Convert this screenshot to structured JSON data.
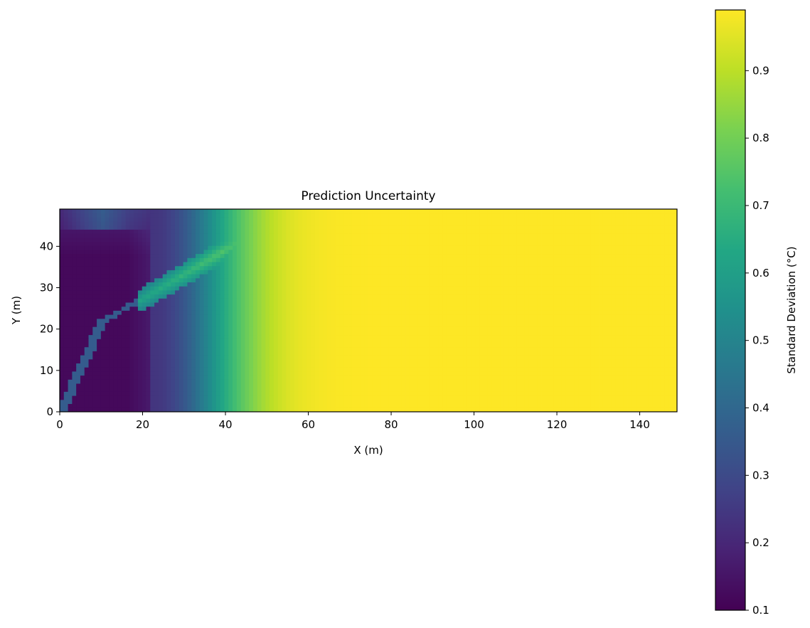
{
  "chart_data": {
    "type": "heatmap",
    "title": "Prediction Uncertainty",
    "xlabel": "X (m)",
    "ylabel": "Y (m)",
    "xlim": [
      0,
      149
    ],
    "ylim": [
      0,
      49
    ],
    "x_ticks": [
      "0",
      "20",
      "40",
      "60",
      "80",
      "100",
      "120",
      "140"
    ],
    "y_ticks": [
      "0",
      "10",
      "20",
      "30",
      "40"
    ],
    "grid": false,
    "colormap": "viridis",
    "colorbar": {
      "label": "Standard Deviation (°C)",
      "range": [
        0.1,
        0.99
      ],
      "ticks": [
        "0.1",
        "0.2",
        "0.3",
        "0.4",
        "0.5",
        "0.6",
        "0.7",
        "0.8",
        "0.9"
      ]
    },
    "field_summary": {
      "low_region": "x 0–22 m, all y: about 0.10–0.25",
      "dark_track": "curved line from (0,5) through (10,22) to (19,27): about 0.35",
      "ridge": "diagonal streak from (19,27) to (50,45): about 0.7–0.85",
      "transition": "x 22–60 m: rising 0.3 to 0.92",
      "plateau": "x over 90 m: about 0.97–0.99"
    }
  }
}
